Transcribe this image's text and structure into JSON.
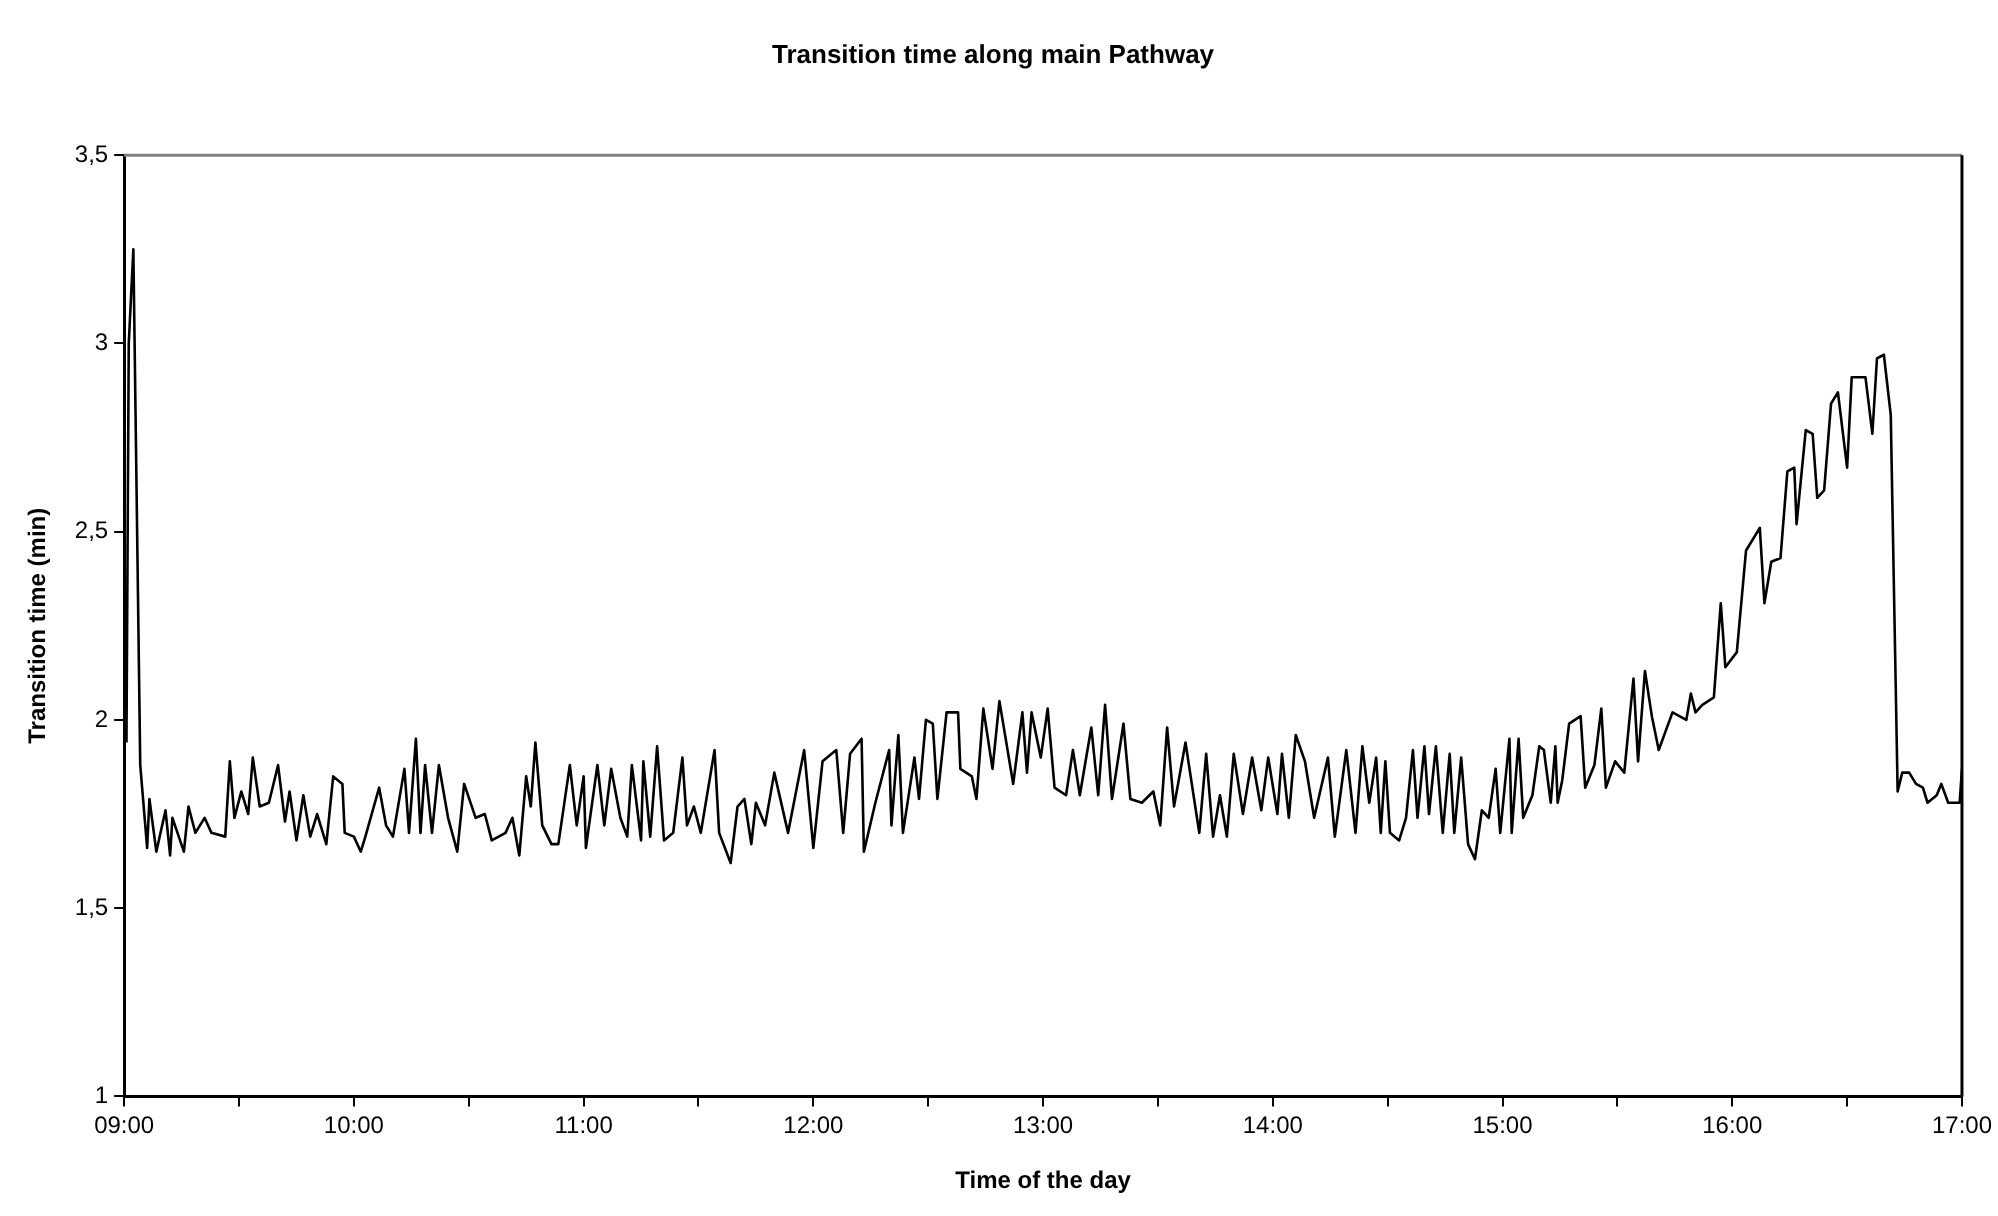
{
  "chart_data": {
    "type": "line",
    "title": "Transition time along main Pathway",
    "xlabel": "Time of the day",
    "ylabel": "Transition time (min)",
    "x": [
      9.01,
      9.02,
      9.04,
      9.07,
      9.1,
      9.11,
      9.14,
      9.18,
      9.2,
      9.21,
      9.26,
      9.28,
      9.31,
      9.35,
      9.38,
      9.44,
      9.46,
      9.48,
      9.51,
      9.54,
      9.56,
      9.59,
      9.63,
      9.67,
      9.7,
      9.72,
      9.75,
      9.78,
      9.81,
      9.84,
      9.88,
      9.91,
      9.95,
      9.96,
      10.0,
      10.03,
      10.05,
      10.11,
      10.14,
      10.17,
      10.22,
      10.24,
      10.27,
      10.29,
      10.31,
      10.34,
      10.37,
      10.41,
      10.45,
      10.48,
      10.53,
      10.57,
      10.6,
      10.66,
      10.69,
      10.72,
      10.75,
      10.77,
      10.79,
      10.82,
      10.86,
      10.89,
      10.94,
      10.97,
      11.0,
      11.01,
      11.06,
      11.09,
      11.12,
      11.16,
      11.19,
      11.21,
      11.25,
      11.26,
      11.29,
      11.32,
      11.35,
      11.39,
      11.43,
      11.45,
      11.48,
      11.51,
      11.57,
      11.59,
      11.64,
      11.67,
      11.7,
      11.73,
      11.75,
      11.79,
      11.83,
      11.89,
      11.96,
      12.0,
      12.04,
      12.1,
      12.13,
      12.16,
      12.21,
      12.22,
      12.27,
      12.33,
      12.34,
      12.37,
      12.39,
      12.44,
      12.46,
      12.49,
      12.52,
      12.54,
      12.58,
      12.63,
      12.64,
      12.69,
      12.71,
      12.74,
      12.78,
      12.81,
      12.87,
      12.91,
      12.93,
      12.95,
      12.99,
      13.02,
      13.05,
      13.1,
      13.13,
      13.16,
      13.21,
      13.24,
      13.27,
      13.3,
      13.35,
      13.38,
      13.43,
      13.48,
      13.51,
      13.54,
      13.57,
      13.62,
      13.68,
      13.71,
      13.74,
      13.77,
      13.8,
      13.83,
      13.87,
      13.91,
      13.95,
      13.98,
      14.02,
      14.04,
      14.07,
      14.1,
      14.14,
      14.18,
      14.24,
      14.27,
      14.32,
      14.36,
      14.39,
      14.42,
      14.45,
      14.47,
      14.49,
      14.51,
      14.55,
      14.58,
      14.61,
      14.63,
      14.66,
      14.68,
      14.71,
      14.74,
      14.77,
      14.79,
      14.82,
      14.85,
      14.88,
      14.91,
      14.94,
      14.97,
      14.99,
      15.03,
      15.04,
      15.07,
      15.09,
      15.13,
      15.16,
      15.18,
      15.21,
      15.23,
      15.24,
      15.26,
      15.29,
      15.34,
      15.36,
      15.4,
      15.43,
      15.45,
      15.49,
      15.53,
      15.57,
      15.59,
      15.62,
      15.65,
      15.68,
      15.74,
      15.8,
      15.82,
      15.84,
      15.87,
      15.92,
      15.95,
      15.97,
      16.02,
      16.06,
      16.08,
      16.12,
      16.14,
      16.17,
      16.21,
      16.24,
      16.27,
      16.28,
      16.32,
      16.35,
      16.37,
      16.4,
      16.43,
      16.46,
      16.5,
      16.52,
      16.58,
      16.61,
      16.63,
      16.66,
      16.69,
      16.72,
      16.74,
      16.77,
      16.8,
      16.83,
      16.85,
      16.89,
      16.91,
      16.94,
      16.97,
      16.99,
      17.0
    ],
    "series": [
      {
        "color": "#000000",
        "values": [
          1.94,
          3.0,
          3.25,
          1.88,
          1.66,
          1.79,
          1.65,
          1.76,
          1.64,
          1.74,
          1.65,
          1.77,
          1.7,
          1.74,
          1.7,
          1.69,
          1.89,
          1.74,
          1.81,
          1.75,
          1.9,
          1.77,
          1.78,
          1.88,
          1.73,
          1.81,
          1.68,
          1.8,
          1.69,
          1.75,
          1.67,
          1.85,
          1.83,
          1.7,
          1.69,
          1.65,
          1.69,
          1.82,
          1.72,
          1.69,
          1.87,
          1.7,
          1.95,
          1.7,
          1.88,
          1.7,
          1.88,
          1.74,
          1.65,
          1.83,
          1.74,
          1.75,
          1.68,
          1.7,
          1.74,
          1.64,
          1.85,
          1.77,
          1.94,
          1.72,
          1.67,
          1.67,
          1.88,
          1.72,
          1.85,
          1.66,
          1.88,
          1.72,
          1.87,
          1.74,
          1.69,
          1.88,
          1.68,
          1.89,
          1.69,
          1.93,
          1.68,
          1.7,
          1.9,
          1.72,
          1.77,
          1.7,
          1.92,
          1.7,
          1.62,
          1.77,
          1.79,
          1.67,
          1.78,
          1.72,
          1.86,
          1.7,
          1.92,
          1.66,
          1.89,
          1.92,
          1.7,
          1.91,
          1.95,
          1.65,
          1.78,
          1.92,
          1.72,
          1.96,
          1.7,
          1.9,
          1.79,
          2.0,
          1.99,
          1.79,
          2.02,
          2.02,
          1.87,
          1.85,
          1.79,
          2.03,
          1.87,
          2.05,
          1.83,
          2.02,
          1.86,
          2.02,
          1.9,
          2.03,
          1.82,
          1.8,
          1.92,
          1.8,
          1.98,
          1.8,
          2.04,
          1.79,
          1.99,
          1.79,
          1.78,
          1.81,
          1.72,
          1.98,
          1.77,
          1.94,
          1.7,
          1.91,
          1.69,
          1.8,
          1.69,
          1.91,
          1.75,
          1.9,
          1.76,
          1.9,
          1.75,
          1.91,
          1.74,
          1.96,
          1.89,
          1.74,
          1.9,
          1.69,
          1.92,
          1.7,
          1.93,
          1.78,
          1.9,
          1.7,
          1.89,
          1.7,
          1.68,
          1.74,
          1.92,
          1.74,
          1.93,
          1.75,
          1.93,
          1.7,
          1.91,
          1.7,
          1.9,
          1.67,
          1.63,
          1.76,
          1.74,
          1.87,
          1.7,
          1.95,
          1.7,
          1.95,
          1.74,
          1.8,
          1.93,
          1.92,
          1.78,
          1.93,
          1.78,
          1.84,
          1.99,
          2.01,
          1.82,
          1.88,
          2.03,
          1.82,
          1.89,
          1.86,
          2.11,
          1.89,
          2.13,
          2.01,
          1.92,
          2.02,
          2.0,
          2.07,
          2.02,
          2.04,
          2.06,
          2.31,
          2.14,
          2.18,
          2.45,
          2.47,
          2.51,
          2.31,
          2.42,
          2.43,
          2.66,
          2.67,
          2.52,
          2.77,
          2.76,
          2.59,
          2.61,
          2.84,
          2.87,
          2.67,
          2.91,
          2.91,
          2.76,
          2.96,
          2.97,
          2.81,
          1.81,
          1.86,
          1.86,
          1.83,
          1.82,
          1.78,
          1.8,
          1.83,
          1.78,
          1.78,
          1.78,
          1.87
        ]
      }
    ],
    "xlim": [
      9,
      17
    ],
    "xticks": [
      {
        "value": 9,
        "label": "09:00"
      },
      {
        "value": 9.5,
        "label": null
      },
      {
        "value": 10,
        "label": "10:00"
      },
      {
        "value": 10.5,
        "label": null
      },
      {
        "value": 11,
        "label": "11:00"
      },
      {
        "value": 11.5,
        "label": null
      },
      {
        "value": 12,
        "label": "12:00"
      },
      {
        "value": 12.5,
        "label": null
      },
      {
        "value": 13,
        "label": "13:00"
      },
      {
        "value": 13.5,
        "label": null
      },
      {
        "value": 14,
        "label": "14:00"
      },
      {
        "value": 14.5,
        "label": null
      },
      {
        "value": 15,
        "label": "15:00"
      },
      {
        "value": 15.5,
        "label": null
      },
      {
        "value": 16,
        "label": "16:00"
      },
      {
        "value": 16.5,
        "label": null
      },
      {
        "value": 17,
        "label": "17:00"
      }
    ],
    "ylim": [
      1,
      3.5
    ],
    "yticks": [
      1,
      {
        "value": 1.5,
        "label": "1,5"
      },
      2,
      {
        "value": 2.5,
        "label": "2,5"
      },
      3,
      {
        "value": 3.5,
        "label": "3,5"
      }
    ],
    "marker": "none",
    "line_style": "solid"
  }
}
